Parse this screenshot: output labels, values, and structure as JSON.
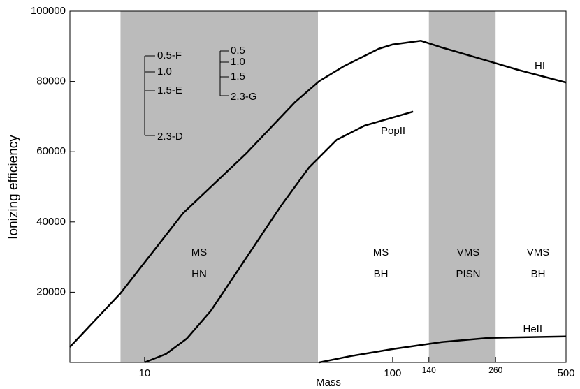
{
  "chart_data": {
    "type": "line",
    "xlabel": "Mass",
    "ylabel": "Ionizing efficiency",
    "xlog": true,
    "xlim": [
      5,
      500
    ],
    "xticks": [
      10,
      100,
      140,
      260,
      500
    ],
    "ylim": [
      0,
      100000
    ],
    "yticks": [
      20000,
      40000,
      60000,
      80000,
      100000
    ],
    "shaded_regions": [
      [
        8,
        50
      ],
      [
        140,
        260
      ]
    ],
    "shade_color": "#bbbbbb",
    "series": [
      {
        "name": "HI",
        "color": "#000000",
        "x": [
          5,
          8,
          14.3,
          25.6,
          40.4,
          50.6,
          63.5,
          88,
          100,
          130,
          157,
          246,
          320,
          500
        ],
        "values": [
          4400,
          19700,
          42500,
          59400,
          74100,
          80100,
          84300,
          89300,
          90500,
          91600,
          89700,
          85700,
          83300,
          79700
        ]
      },
      {
        "name": "PopII",
        "color": "#000000",
        "x": [
          10,
          12.2,
          14.8,
          18.5,
          25.6,
          35.4,
          46,
          59.5,
          77,
          121
        ],
        "values": [
          0,
          2400,
          6800,
          14700,
          29600,
          44500,
          55500,
          63400,
          67400,
          71400
        ]
      },
      {
        "name": "HeII",
        "color": "#000000",
        "x": [
          50.6,
          67.7,
          100,
          157,
          246,
          500
        ],
        "values": [
          0,
          1800,
          3800,
          5800,
          7000,
          7400
        ]
      }
    ],
    "region_labels": [
      [
        "MS",
        "HN"
      ],
      [
        "MS",
        "BH"
      ],
      [
        "VMS",
        "PISN"
      ],
      [
        "VMS",
        "BH"
      ]
    ],
    "bracket_labels": [
      [
        "0.5-F",
        "1.0",
        "1.5-E",
        "2.3-D"
      ],
      [
        "0.5",
        "1.0",
        "1.5",
        "2.3-G"
      ]
    ]
  }
}
